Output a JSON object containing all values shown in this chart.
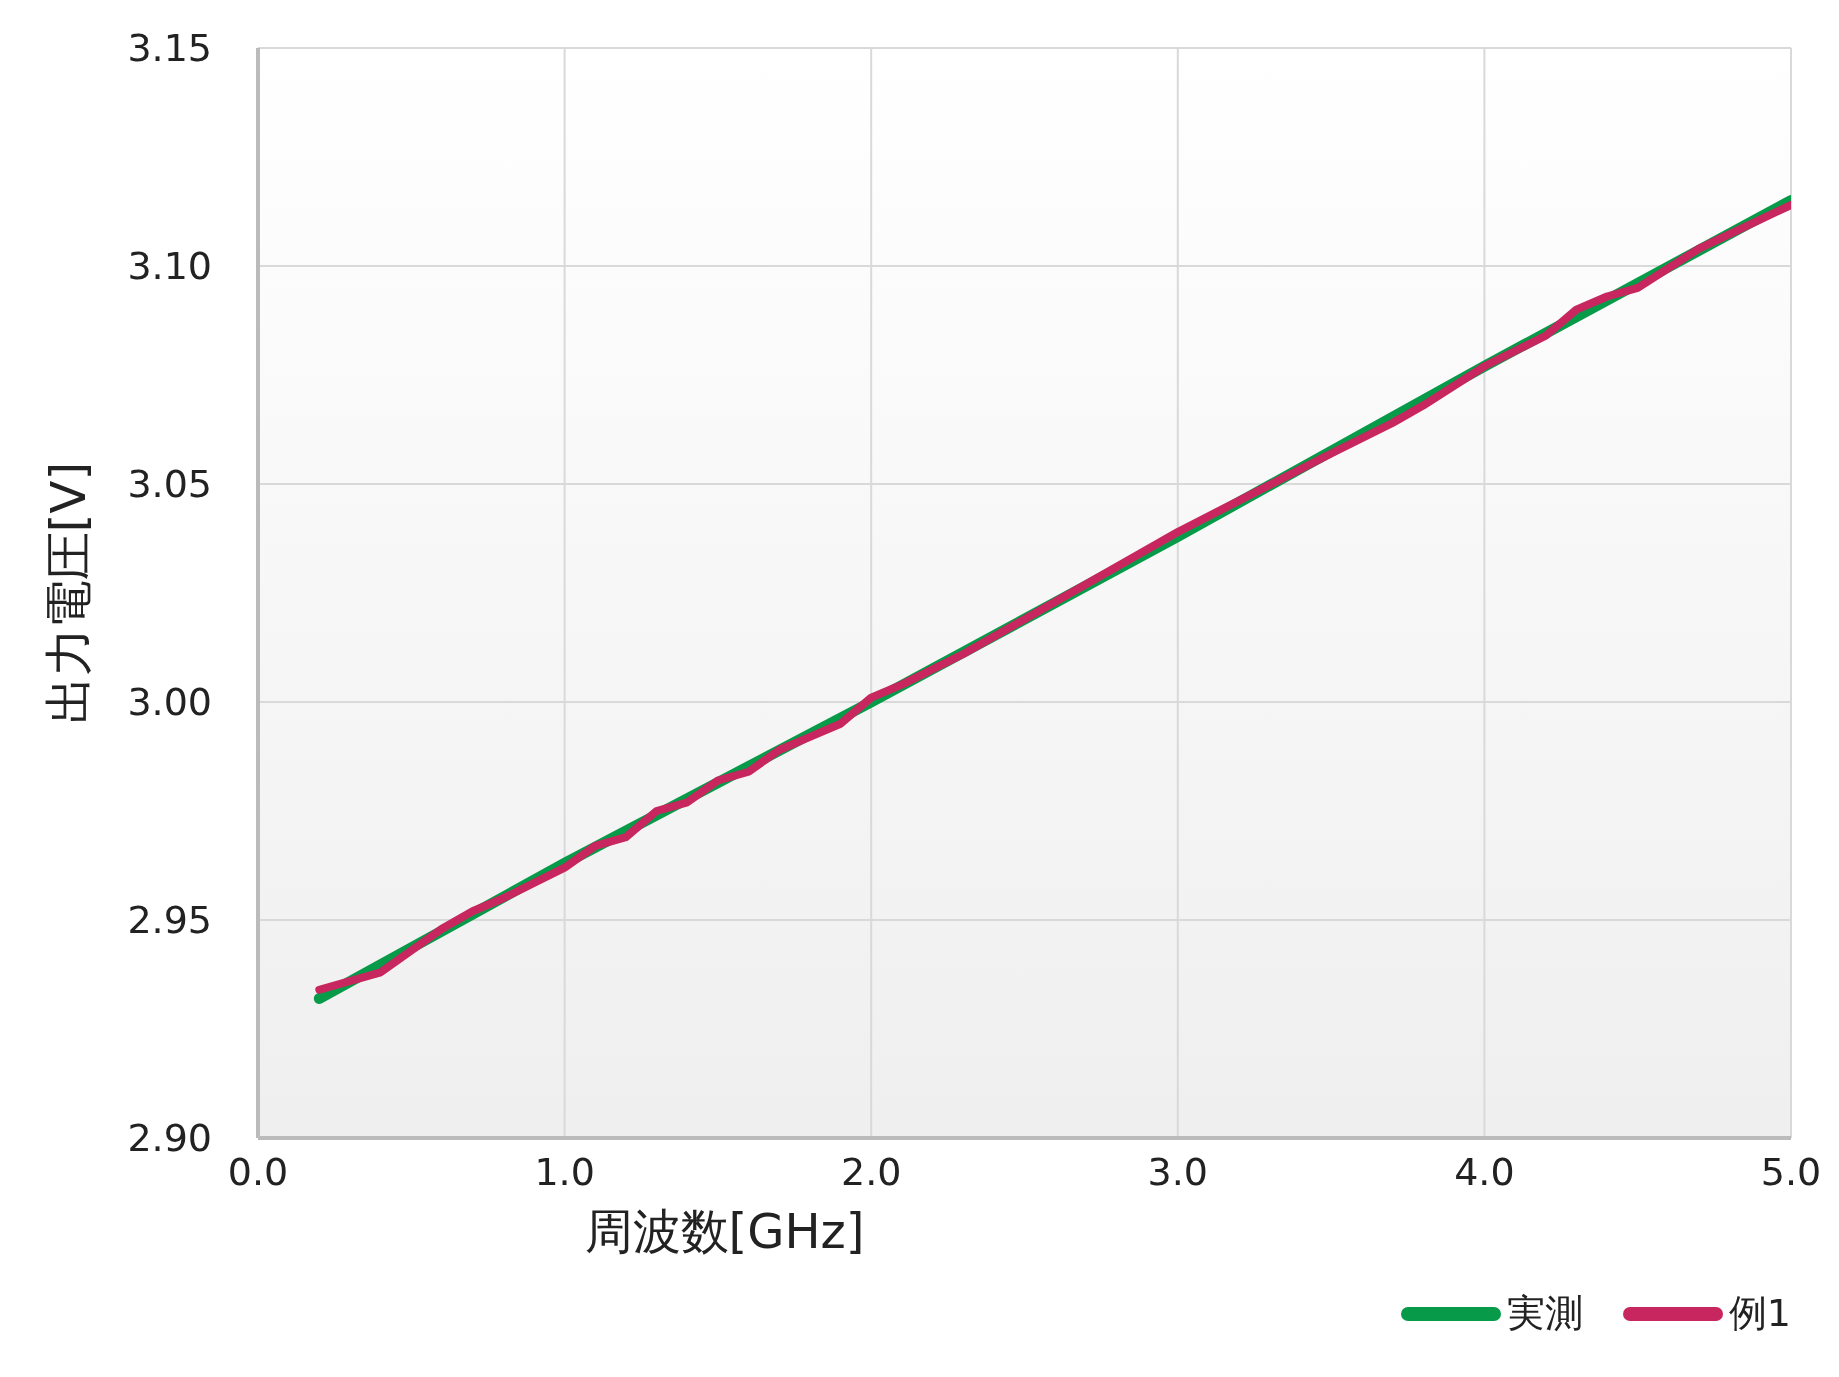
{
  "chart_data": {
    "type": "line",
    "xlabel": "周波数[GHz]",
    "ylabel": "出力電圧[V]",
    "xlim": [
      0,
      5
    ],
    "xticks": [
      {
        "value": 0,
        "label": "0.0"
      },
      {
        "value": 1,
        "label": "1.0"
      },
      {
        "value": 2,
        "label": "2.0"
      },
      {
        "value": 3,
        "label": "3.0"
      },
      {
        "value": 4,
        "label": "4.0"
      },
      {
        "value": 5,
        "label": "5.0"
      }
    ],
    "ylim": [
      2.9,
      3.15
    ],
    "yticks": [
      {
        "value": 2.9,
        "label": "2.90"
      },
      {
        "value": 2.95,
        "label": "2.95"
      },
      {
        "value": 3,
        "label": "3.00"
      },
      {
        "value": 3.05,
        "label": "3.05"
      },
      {
        "value": 3.1,
        "label": "3.10"
      },
      {
        "value": 3.15,
        "label": "3.15"
      }
    ],
    "grid": true,
    "legend": "bottom right",
    "marker": "none",
    "line_style": "solid",
    "series": [
      {
        "name": "実測",
        "color": "#079a48",
        "x": [
          0.2,
          1.0,
          2.0,
          3.0,
          4.0,
          5.0
        ],
        "values": [
          2.932,
          2.963,
          3.0,
          3.038,
          3.077,
          3.115
        ]
      },
      {
        "name": "例1",
        "color": "#c8265e",
        "x": [
          0.2,
          0.4,
          0.6,
          0.7,
          0.8,
          1.0,
          1.1,
          1.2,
          1.3,
          1.4,
          1.5,
          1.6,
          1.7,
          1.8,
          1.9,
          2.0,
          2.1,
          2.3,
          2.5,
          3.0,
          3.5,
          3.7,
          3.8,
          4.0,
          4.2,
          4.3,
          4.4,
          4.5,
          4.7,
          5.0
        ],
        "values": [
          2.934,
          2.938,
          2.948,
          2.952,
          2.955,
          2.962,
          2.967,
          2.969,
          2.975,
          2.977,
          2.982,
          2.984,
          2.989,
          2.992,
          2.995,
          3.001,
          3.004,
          3.011,
          3.019,
          3.039,
          3.057,
          3.064,
          3.068,
          3.077,
          3.084,
          3.09,
          3.093,
          3.095,
          3.104,
          3.114
        ]
      }
    ]
  }
}
